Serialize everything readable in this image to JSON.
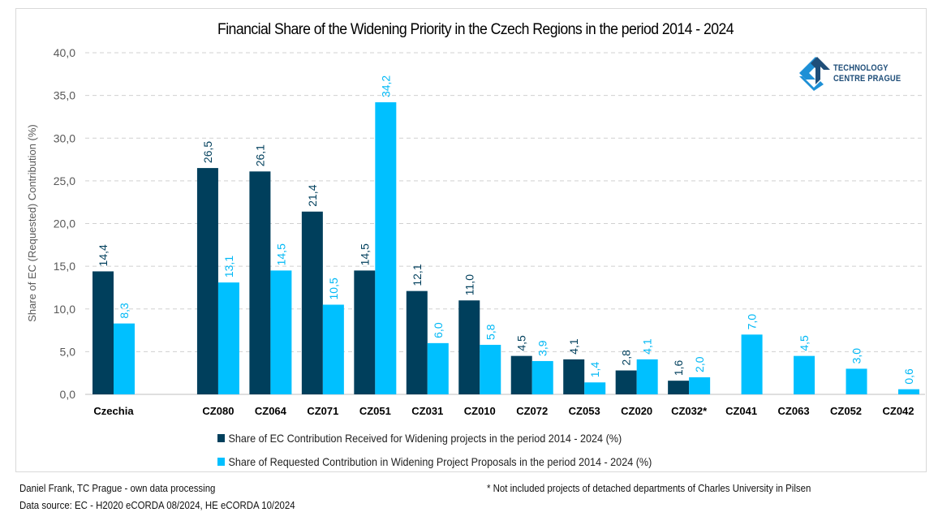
{
  "chart_data": {
    "type": "bar",
    "title": "Financial Share of the Widening Priority in the Czech Regions in the period 2014 - 2024",
    "xlabel": "",
    "ylabel": "Share of EC (Requested) Contribution (%)",
    "ylim": [
      0,
      40
    ],
    "yticks": [
      "0,0",
      "5,0",
      "10,0",
      "15,0",
      "20,0",
      "25,0",
      "30,0",
      "35,0",
      "40,0"
    ],
    "grid": true,
    "legend_position": "bottom",
    "categories": [
      "Czechia",
      "",
      "CZ080",
      "CZ064",
      "CZ071",
      "CZ051",
      "CZ031",
      "CZ010",
      "CZ072",
      "CZ053",
      "CZ020",
      "CZ032*",
      "CZ041",
      "CZ063",
      "CZ052",
      "CZ042"
    ],
    "series": [
      {
        "name": "Share of EC Contribution Received for Widening projects in the period 2014 - 2024 (%)",
        "color": "#003f5c",
        "values": [
          14.4,
          null,
          26.5,
          26.1,
          21.4,
          14.5,
          12.1,
          11.0,
          4.5,
          4.1,
          2.8,
          1.6,
          null,
          null,
          null,
          null
        ],
        "labels": [
          "14,4",
          "",
          "26,5",
          "26,1",
          "21,4",
          "14,5",
          "12,1",
          "11,0",
          "4,5",
          "4,1",
          "2,8",
          "1,6",
          "",
          "",
          "",
          ""
        ]
      },
      {
        "name": "Share of Requested Contribution in Widening Project Proposals in the period 2014 - 2024 (%)",
        "color": "#00c0ff",
        "values": [
          8.3,
          null,
          13.1,
          14.5,
          10.5,
          34.2,
          6.0,
          5.8,
          3.9,
          1.4,
          4.1,
          2.0,
          7.0,
          4.5,
          3.0,
          0.6
        ],
        "labels": [
          "8,3",
          "",
          "13,1",
          "14,5",
          "10,5",
          "34,2",
          "6,0",
          "5,8",
          "3,9",
          "1,4",
          "4,1",
          "2,0",
          "7,0",
          "4,5",
          "3,0",
          "0,6"
        ]
      }
    ]
  },
  "logo": {
    "line1": "TECHNOLOGY",
    "line2": "CENTRE PRAGUE",
    "color_dark": "#1f4e79",
    "color_light": "#1e90d6"
  },
  "footer": {
    "author": "Daniel Frank, TC Prague - own data processing",
    "source": "Data source: EC - H2020 eCORDA 08/2024, HE eCORDA 10/2024",
    "note": "* Not included projects of detached departments of Charles University in Pilsen"
  }
}
